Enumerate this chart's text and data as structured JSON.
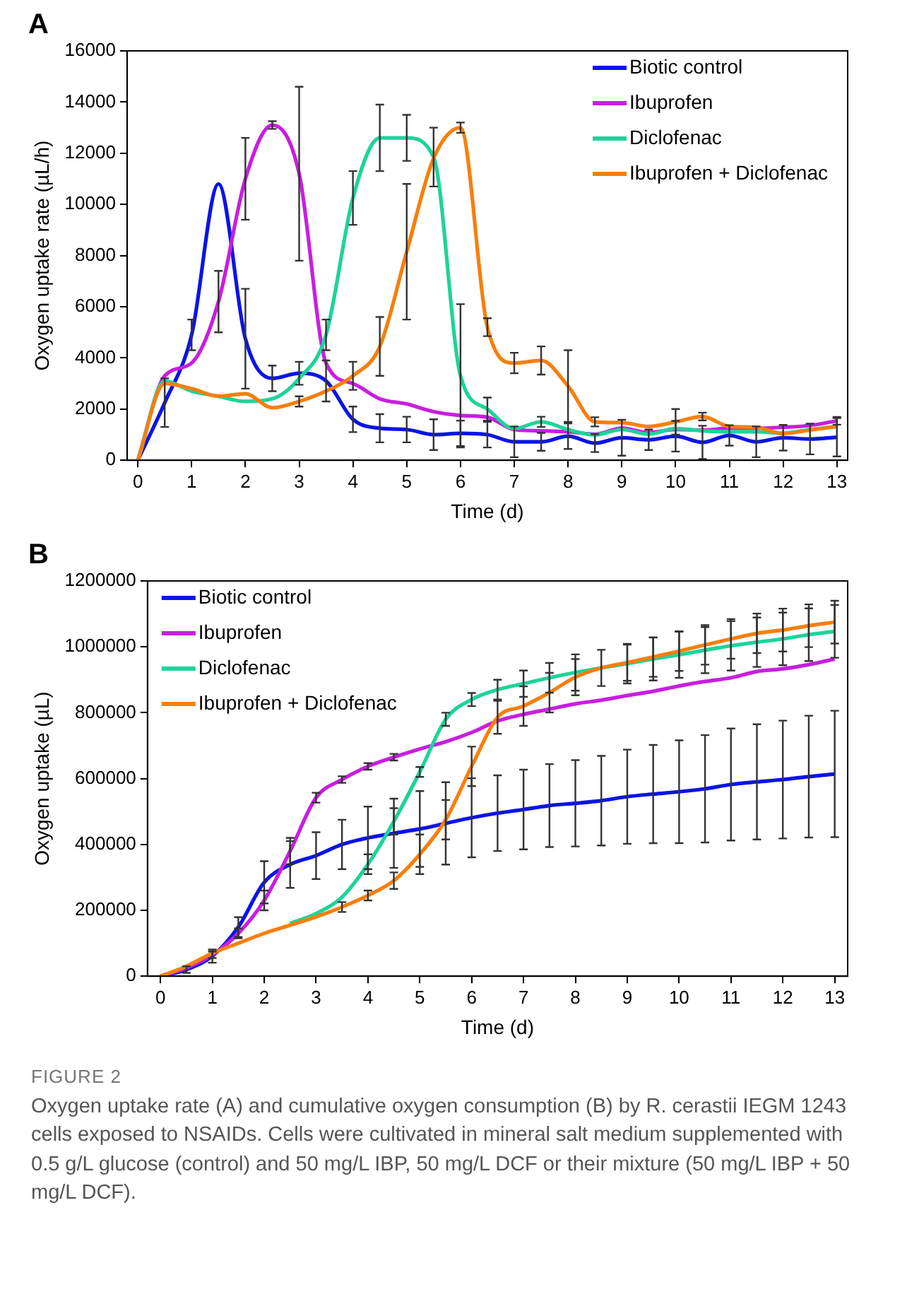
{
  "chart_data": [
    {
      "type": "line",
      "title": "A",
      "xlabel": "Time (d)",
      "ylabel": "Oxygen uptake rate (µL/h)",
      "legend": "top right",
      "marker": "none",
      "line_style": "solid",
      "grid": false,
      "x": [
        0,
        0.5,
        1,
        1.5,
        2,
        2.5,
        3,
        3.5,
        4,
        4.5,
        5,
        5.5,
        6,
        6.5,
        7,
        7.5,
        8,
        8.5,
        9,
        9.5,
        10,
        10.5,
        11,
        11.5,
        12,
        12.5,
        13
      ],
      "xlim": [
        -0.2,
        13.2
      ],
      "xticks": [
        0,
        1,
        2,
        3,
        4,
        5,
        6,
        7,
        8,
        9,
        10,
        11,
        12,
        13
      ],
      "ylim": [
        0,
        16000
      ],
      "yticks": [
        0,
        2000,
        4000,
        6000,
        8000,
        10000,
        12000,
        14000,
        16000
      ],
      "series": [
        {
          "name": "Biotic control",
          "color": "#0a14e6",
          "values": [
            0,
            2250,
            4900,
            10800,
            4750,
            3200,
            3400,
            3100,
            1600,
            1250,
            1200,
            1000,
            1050,
            1000,
            720,
            720,
            940,
            670,
            880,
            800,
            940,
            700,
            970,
            720,
            880,
            830,
            900
          ],
          "errors": [
            null,
            950,
            600,
            null,
            1950,
            500,
            450,
            800,
            500,
            550,
            500,
            600,
            500,
            500,
            600,
            350,
            500,
            350,
            700,
            400,
            600,
            650,
            400,
            600,
            500,
            600,
            750
          ]
        },
        {
          "name": "Ibuprofen",
          "color": "#c81ee0",
          "values": [
            0,
            3300,
            3800,
            6200,
            11000,
            13100,
            11200,
            3800,
            3000,
            2400,
            2200,
            1900,
            1750,
            1680,
            1200,
            1150,
            1110,
            1020,
            1250,
            1080,
            1200,
            1180,
            1250,
            1250,
            1290,
            1360,
            1540
          ],
          "errors": [
            null,
            null,
            null,
            1200,
            1600,
            150,
            3400,
            null,
            null,
            null,
            null,
            null,
            null,
            null,
            null,
            null,
            null,
            null,
            null,
            null,
            null,
            null,
            null,
            null,
            null,
            null,
            150
          ]
        },
        {
          "name": "Diclofenac",
          "color": "#1ed39a",
          "values": [
            0,
            3100,
            2700,
            2500,
            2300,
            2400,
            3200,
            4900,
            10250,
            12600,
            12600,
            11850,
            3300,
            2000,
            1240,
            1500,
            1200,
            990,
            1200,
            1020,
            1240,
            1150,
            1110,
            1110,
            1060,
            1200,
            1320
          ],
          "errors": [
            null,
            null,
            null,
            null,
            null,
            null,
            null,
            600,
            1050,
            1300,
            900,
            1150,
            2800,
            450,
            null,
            200,
            null,
            null,
            null,
            null,
            null,
            null,
            null,
            null,
            null,
            null,
            null
          ]
        },
        {
          "name": "Ibuprofen + Diclofenac",
          "color": "#f77f0c",
          "values": [
            0,
            3000,
            2800,
            2500,
            2600,
            2050,
            2300,
            2700,
            3300,
            4450,
            8150,
            11800,
            13000,
            5200,
            3800,
            3900,
            2900,
            1500,
            1470,
            1320,
            1500,
            1710,
            1320,
            1290,
            1040,
            1180,
            1320
          ],
          "errors": [
            null,
            null,
            null,
            null,
            null,
            null,
            200,
            null,
            550,
            1150,
            2650,
            null,
            200,
            350,
            400,
            550,
            1400,
            180,
            null,
            null,
            500,
            150,
            null,
            null,
            null,
            null,
            null
          ]
        }
      ]
    },
    {
      "type": "line",
      "title": "B",
      "xlabel": "Time (d)",
      "ylabel": "Oxygen uptake (µL)",
      "legend": "top left",
      "marker": "none",
      "line_style": "solid",
      "grid": false,
      "x": [
        0,
        0.5,
        1,
        1.5,
        2,
        2.5,
        3,
        3.5,
        4,
        4.5,
        5,
        5.5,
        6,
        6.5,
        7,
        7.5,
        8,
        8.5,
        9,
        9.5,
        10,
        10.5,
        11,
        11.5,
        12,
        12.5,
        13
      ],
      "xlim": [
        -0.25,
        13.25
      ],
      "xticks": [
        0,
        1,
        2,
        3,
        4,
        5,
        6,
        7,
        8,
        9,
        10,
        11,
        12,
        13
      ],
      "ylim": [
        0,
        1200000
      ],
      "yticks": [
        0,
        200000,
        400000,
        600000,
        800000,
        1000000,
        1200000
      ],
      "series": [
        {
          "name": "Biotic control",
          "color": "#0a14e6",
          "values": [
            0,
            20000,
            61000,
            149000,
            285000,
            339000,
            366000,
            400000,
            420000,
            434000,
            447000,
            464000,
            481000,
            495000,
            506000,
            518000,
            525000,
            533000,
            545000,
            553000,
            560000,
            569000,
            582000,
            590000,
            597000,
            606000,
            614000
          ],
          "errors": [
            null,
            10000,
            20000,
            30000,
            64000,
            71000,
            71000,
            75000,
            95000,
            105000,
            115000,
            125000,
            120000,
            115000,
            121000,
            126000,
            131000,
            136000,
            143000,
            149000,
            156000,
            163000,
            170000,
            175000,
            179000,
            185000,
            192000
          ]
        },
        {
          "name": "Ibuprofen",
          "color": "#c81ee0",
          "values": [
            0,
            25000,
            65000,
            130000,
            230000,
            380000,
            542000,
            597000,
            637000,
            665000,
            690000,
            712000,
            740000,
            775000,
            795000,
            811000,
            827000,
            838000,
            852000,
            865000,
            881000,
            895000,
            906000,
            925000,
            933000,
            946000,
            963000
          ],
          "errors": [
            null,
            null,
            10000,
            15000,
            30000,
            40000,
            15000,
            10000,
            10000,
            10000,
            null,
            null,
            null,
            null,
            null,
            null,
            null,
            null,
            null,
            null,
            null,
            null,
            null,
            null,
            null,
            null,
            null
          ]
        },
        {
          "name": "Diclofenac",
          "color": "#1ed39a",
          "values": [
            null,
            null,
            null,
            null,
            null,
            160000,
            190000,
            240000,
            340000,
            470000,
            620000,
            780000,
            840000,
            870000,
            888000,
            906000,
            922000,
            936000,
            949000,
            963000,
            976000,
            990000,
            1003000,
            1014000,
            1024000,
            1037000,
            1047000
          ],
          "errors": [
            null,
            null,
            null,
            null,
            null,
            null,
            null,
            null,
            30000,
            40000,
            15000,
            20000,
            20000,
            30000,
            40000,
            45000,
            55000,
            null,
            60000,
            65000,
            70000,
            70000,
            75000,
            75000,
            80000,
            80000,
            80000
          ]
        },
        {
          "name": "Ibuprofen + Diclofenac",
          "color": "#f77f0c",
          "values": [
            0,
            30000,
            70000,
            100000,
            130000,
            155000,
            180000,
            210000,
            245000,
            290000,
            370000,
            475000,
            637000,
            786000,
            820000,
            861000,
            908000,
            936000,
            952000,
            969000,
            987000,
            1006000,
            1024000,
            1041000,
            1051000,
            1064000,
            1075000
          ],
          "errors": [
            null,
            null,
            null,
            null,
            null,
            null,
            null,
            15000,
            15000,
            25000,
            60000,
            60000,
            60000,
            50000,
            60000,
            60000,
            55000,
            55000,
            55000,
            60000,
            60000,
            60000,
            60000,
            60000,
            65000,
            65000,
            65000
          ]
        }
      ],
      "annotations": [
        "FIGURE 2",
        "Oxygen uptake rate (A) and cumulative oxygen consumption (B) by R. cerastii IEGM 1243 cells exposed to NSAIDs. Cells were cultivated in mineral salt medium supplemented with 0.5 g/L glucose (control) and 50 mg/L IBP, 50 mg/L DCF or their mixture (50 mg/L IBP + 50 mg/L DCF)."
      ]
    }
  ]
}
